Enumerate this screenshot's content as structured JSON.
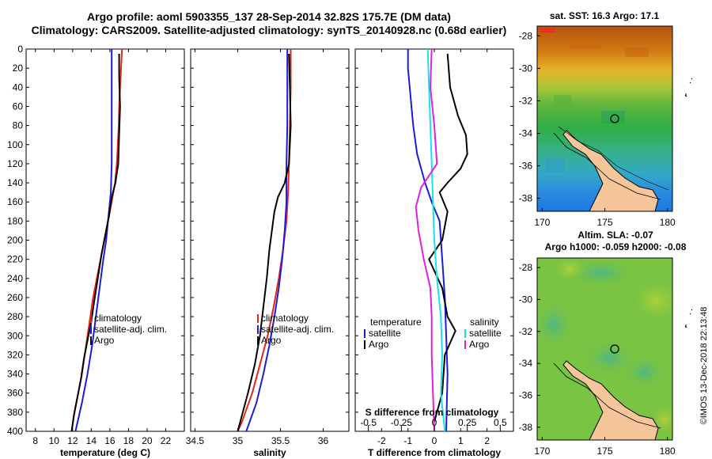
{
  "header": {
    "title_line1": "Argo profile: aoml 5903355_137 28-Sep-2014 32.82S 175.7E (DM data)",
    "title_line2": "Climatology: CARS2009. Satellite-adjusted climatology: synTS_20140928.nc (0.68d earlier)"
  },
  "colors": {
    "climatology": "#e8231a",
    "satellite": "#1c1cd6",
    "argo": "#000000",
    "sat_salinity": "#19e0f0",
    "clim_salinity_diff": "#e020e0"
  },
  "chart_data": [
    {
      "id": "temperature",
      "type": "line",
      "xlabel": "temperature (deg C)",
      "ylabel": "",
      "xlim": [
        7,
        24
      ],
      "ylim": [
        400,
        0
      ],
      "x_ticks": [
        8,
        10,
        12,
        14,
        16,
        18,
        20,
        22
      ],
      "y_ticks": [
        0,
        20,
        40,
        60,
        80,
        100,
        120,
        140,
        160,
        180,
        200,
        220,
        240,
        260,
        280,
        300,
        320,
        340,
        360,
        380,
        400
      ],
      "legend": [
        "climatology",
        "satellite-adj. clim.",
        "Argo"
      ],
      "series": [
        {
          "name": "climatology",
          "color": "#e8231a",
          "points": [
            [
              17.3,
              0
            ],
            [
              17.2,
              20
            ],
            [
              17.1,
              40
            ],
            [
              17.0,
              60
            ],
            [
              16.95,
              80
            ],
            [
              16.85,
              100
            ],
            [
              16.75,
              120
            ],
            [
              16.55,
              140
            ],
            [
              16.2,
              160
            ],
            [
              15.8,
              180
            ],
            [
              15.4,
              200
            ],
            [
              15.0,
              220
            ],
            [
              14.6,
              240
            ],
            [
              14.2,
              260
            ],
            [
              13.9,
              280
            ],
            [
              13.6,
              300
            ],
            [
              13.3,
              320
            ],
            [
              13.0,
              340
            ],
            [
              12.6,
              360
            ],
            [
              12.2,
              380
            ],
            [
              11.9,
              400
            ]
          ]
        },
        {
          "name": "satellite-adj. clim.",
          "color": "#1c1cd6",
          "points": [
            [
              16.2,
              0
            ],
            [
              16.2,
              40
            ],
            [
              16.2,
              80
            ],
            [
              16.2,
              120
            ],
            [
              16.1,
              150
            ],
            [
              15.9,
              170
            ],
            [
              15.6,
              200
            ],
            [
              15.3,
              220
            ],
            [
              14.9,
              250
            ],
            [
              14.5,
              280
            ],
            [
              14.1,
              310
            ],
            [
              13.6,
              340
            ],
            [
              13.0,
              370
            ],
            [
              12.3,
              400
            ]
          ]
        },
        {
          "name": "Argo",
          "color": "#000000",
          "points": [
            [
              17.0,
              5
            ],
            [
              17.0,
              30
            ],
            [
              17.1,
              60
            ],
            [
              17.0,
              90
            ],
            [
              16.9,
              120
            ],
            [
              16.6,
              140
            ],
            [
              16.2,
              155
            ],
            [
              15.9,
              175
            ],
            [
              15.5,
              195
            ],
            [
              15.1,
              215
            ],
            [
              14.7,
              240
            ],
            [
              14.3,
              265
            ],
            [
              14.0,
              285
            ],
            [
              13.6,
              305
            ],
            [
              13.2,
              325
            ],
            [
              12.9,
              345
            ],
            [
              12.5,
              365
            ],
            [
              12.1,
              385
            ],
            [
              11.9,
              400
            ]
          ]
        }
      ]
    },
    {
      "id": "salinity",
      "type": "line",
      "xlabel": "salinity",
      "ylabel": "",
      "xlim": [
        34.45,
        36.3
      ],
      "ylim": [
        400,
        0
      ],
      "x_ticks": [
        34.5,
        35,
        35.5,
        36
      ],
      "x_tick_labels": [
        "34.5",
        "35",
        "35.5",
        "36"
      ],
      "legend": [
        "climatology",
        "satellite-adj. clim.",
        "Argo"
      ],
      "series": [
        {
          "name": "climatology",
          "color": "#e8231a",
          "points": [
            [
              35.62,
              0
            ],
            [
              35.62,
              40
            ],
            [
              35.61,
              80
            ],
            [
              35.6,
              120
            ],
            [
              35.59,
              150
            ],
            [
              35.57,
              180
            ],
            [
              35.53,
              210
            ],
            [
              35.48,
              240
            ],
            [
              35.42,
              270
            ],
            [
              35.35,
              300
            ],
            [
              35.26,
              330
            ],
            [
              35.17,
              360
            ],
            [
              35.05,
              390
            ],
            [
              35.0,
              400
            ]
          ]
        },
        {
          "name": "satellite-adj. clim.",
          "color": "#1c1cd6",
          "points": [
            [
              35.58,
              0
            ],
            [
              35.58,
              40
            ],
            [
              35.58,
              80
            ],
            [
              35.57,
              120
            ],
            [
              35.57,
              160
            ],
            [
              35.55,
              190
            ],
            [
              35.52,
              220
            ],
            [
              35.48,
              250
            ],
            [
              35.43,
              280
            ],
            [
              35.37,
              310
            ],
            [
              35.3,
              340
            ],
            [
              35.22,
              370
            ],
            [
              35.1,
              400
            ]
          ]
        },
        {
          "name": "Argo",
          "color": "#000000",
          "points": [
            [
              35.6,
              5
            ],
            [
              35.61,
              40
            ],
            [
              35.62,
              80
            ],
            [
              35.6,
              120
            ],
            [
              35.55,
              140
            ],
            [
              35.47,
              155
            ],
            [
              35.43,
              170
            ],
            [
              35.4,
              190
            ],
            [
              35.37,
              210
            ],
            [
              35.34,
              240
            ],
            [
              35.3,
              270
            ],
            [
              35.26,
              300
            ],
            [
              35.2,
              330
            ],
            [
              35.12,
              360
            ],
            [
              35.03,
              390
            ],
            [
              35.0,
              400
            ]
          ]
        }
      ]
    },
    {
      "id": "differences",
      "type": "line",
      "xlabel": "T difference from climatology",
      "top_axis_label": "S difference from climatology",
      "xlim": [
        -3,
        3
      ],
      "ylim": [
        400,
        0
      ],
      "x_ticks": [
        -2,
        -1,
        0,
        1,
        2
      ],
      "x_tick_labels": [
        "-2",
        "-1",
        "0",
        "1",
        "2"
      ],
      "s_ticks": [
        -0.5,
        -0.25,
        0,
        0.25,
        0.5
      ],
      "s_tick_labels": [
        "-0.5",
        "-0.25",
        "0",
        "0.25",
        "0.5"
      ],
      "legend_temperature": {
        "heading": "temperature",
        "items": [
          "satellite",
          "Argo"
        ]
      },
      "legend_salinity": {
        "heading": "salinity",
        "items": [
          "satellite",
          "Argo"
        ]
      },
      "series": [
        {
          "name": "temperature satellite",
          "color": "#1c1cd6",
          "points": [
            [
              -1.0,
              0
            ],
            [
              -1.0,
              20
            ],
            [
              -0.9,
              50
            ],
            [
              -0.8,
              80
            ],
            [
              -0.65,
              110
            ],
            [
              -0.35,
              140
            ],
            [
              -0.1,
              160
            ],
            [
              0.2,
              180
            ],
            [
              0.3,
              220
            ],
            [
              0.4,
              260
            ],
            [
              0.45,
              300
            ],
            [
              0.5,
              340
            ],
            [
              0.45,
              400
            ]
          ]
        },
        {
          "name": "temperature Argo",
          "color": "#000000",
          "points": [
            [
              0.5,
              5
            ],
            [
              0.6,
              40
            ],
            [
              0.9,
              70
            ],
            [
              1.2,
              90
            ],
            [
              1.25,
              110
            ],
            [
              1.0,
              125
            ],
            [
              0.5,
              140
            ],
            [
              0.2,
              150
            ],
            [
              0.5,
              170
            ],
            [
              0.3,
              200
            ],
            [
              -0.2,
              220
            ],
            [
              0.3,
              250
            ],
            [
              0.5,
              280
            ],
            [
              0.8,
              295
            ],
            [
              0.4,
              320
            ],
            [
              0.3,
              360
            ],
            [
              0.0,
              390
            ]
          ]
        },
        {
          "name": "salinity satellite",
          "color": "#19e0f0",
          "points": [
            [
              -0.05,
              0
            ],
            [
              -0.04,
              40
            ],
            [
              -0.03,
              80
            ],
            [
              -0.02,
              120
            ],
            [
              -0.01,
              160
            ],
            [
              0.0,
              200
            ],
            [
              0.02,
              240
            ],
            [
              0.05,
              280
            ],
            [
              0.06,
              320
            ],
            [
              0.05,
              360
            ],
            [
              0.08,
              400
            ]
          ]
        },
        {
          "name": "salinity Argo",
          "color": "#e020e0",
          "points": [
            [
              -0.02,
              0
            ],
            [
              -0.03,
              40
            ],
            [
              0.0,
              80
            ],
            [
              0.02,
              120
            ],
            [
              -0.1,
              145
            ],
            [
              -0.14,
              165
            ],
            [
              -0.12,
              190
            ],
            [
              -0.08,
              220
            ],
            [
              -0.03,
              250
            ],
            [
              -0.02,
              280
            ],
            [
              -0.02,
              320
            ],
            [
              -0.01,
              360
            ],
            [
              0.0,
              400
            ]
          ]
        }
      ]
    },
    {
      "id": "sst_map",
      "type": "heatmap",
      "title": "sat. SST: 16.3 Argo: 17.1",
      "x_tick_labels": [
        "170",
        "175",
        "180"
      ],
      "y_tick_labels": [
        "-28",
        "-30",
        "-32",
        "-34",
        "-36",
        "-38"
      ],
      "x": [
        170,
        175,
        180
      ],
      "y": [
        -28,
        -30,
        -32,
        -34,
        -36,
        -38
      ],
      "profile_location": {
        "lon": 175.7,
        "lat": -32.82
      }
    },
    {
      "id": "sla_map",
      "type": "heatmap",
      "title_line1": "Altim. SLA: -0.07",
      "title_line2": "Argo h1000: -0.059 h2000: -0.08",
      "x_tick_labels": [
        "170",
        "175",
        "180"
      ],
      "y_tick_labels": [
        "-28",
        "-30",
        "-32",
        "-34",
        "-36",
        "-38"
      ],
      "x": [
        170,
        175,
        180
      ],
      "y": [
        -28,
        -30,
        -32,
        -34,
        -36,
        -38
      ],
      "profile_location": {
        "lon": 175.7,
        "lat": -32.82
      }
    }
  ],
  "footer": {
    "credit": "©IMOS 13-Dec-2018 22:13:48"
  }
}
